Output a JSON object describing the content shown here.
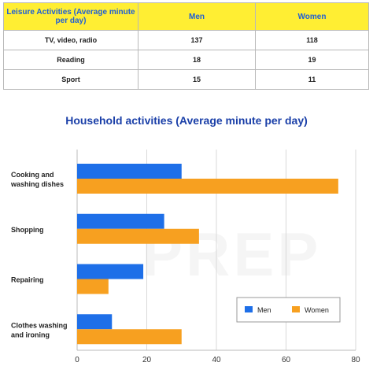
{
  "table": {
    "headers": [
      "Leisure Activities (Average minute per day)",
      "Men",
      "Women"
    ],
    "rows": [
      {
        "activity": "TV, video, radio",
        "men": "137",
        "women": "118"
      },
      {
        "activity": "Reading",
        "men": "18",
        "women": "19"
      },
      {
        "activity": "Sport",
        "men": "15",
        "women": "11"
      }
    ]
  },
  "watermark": "PREP",
  "chart_data": {
    "type": "bar",
    "orientation": "horizontal",
    "title": "Household activities (Average minute per day)",
    "categories": [
      "Cooking and washing dishes",
      "Shopping",
      "Repairing",
      "Clothes washing and ironing"
    ],
    "series": [
      {
        "name": "Men",
        "values": [
          30,
          25,
          19,
          10
        ],
        "color": "#1e6fe8"
      },
      {
        "name": "Women",
        "values": [
          75,
          35,
          9,
          30
        ],
        "color": "#f7a020"
      }
    ],
    "xlim": [
      0,
      80
    ],
    "xticks": [
      0,
      20,
      40,
      60,
      80
    ],
    "grid": true,
    "legend": "bottom-right",
    "xlabel": "",
    "ylabel": ""
  }
}
